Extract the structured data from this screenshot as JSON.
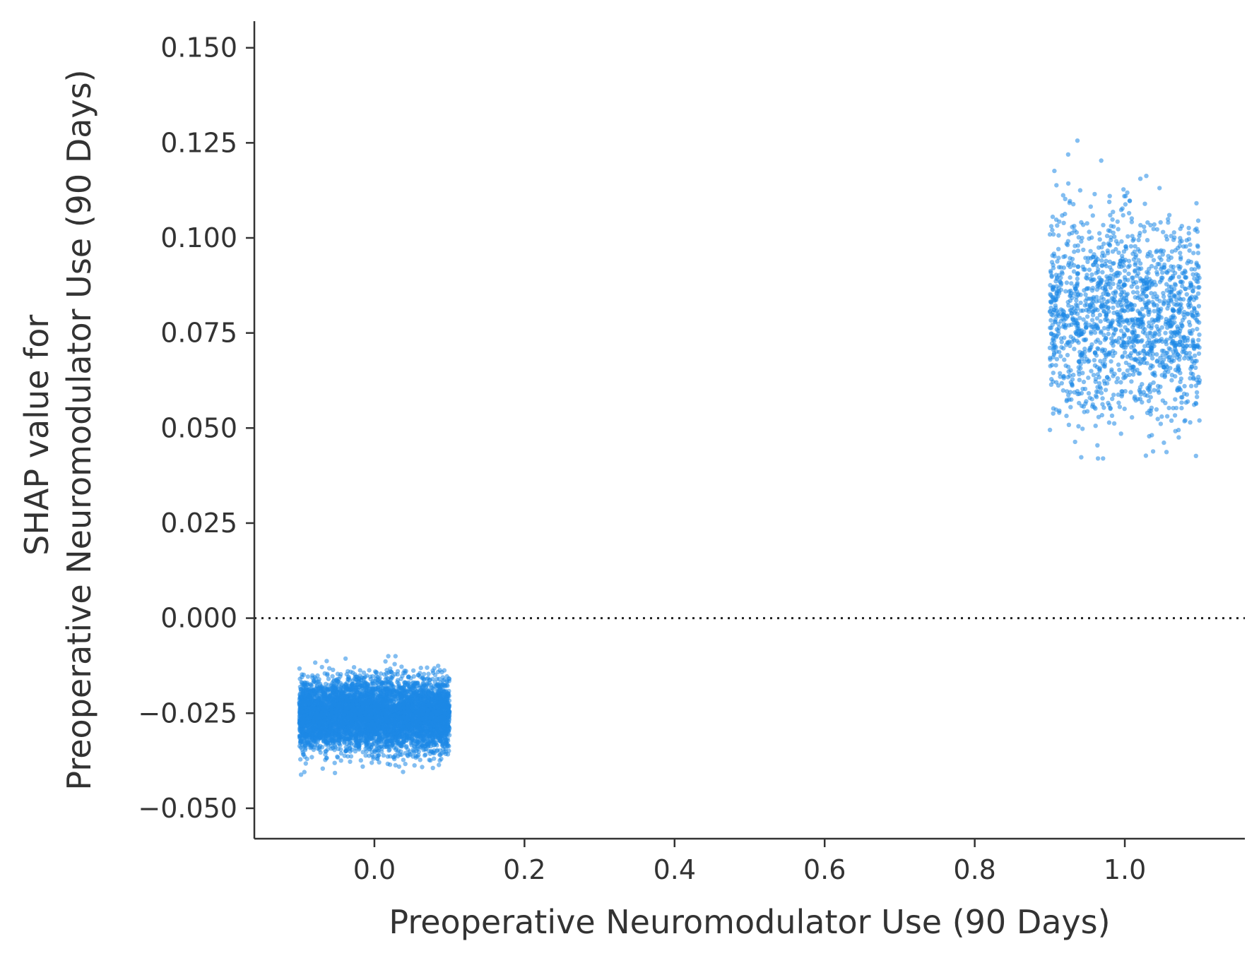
{
  "chart_data": {
    "type": "scatter",
    "title": "",
    "xlabel": "Preoperative Neuromodulator Use (90 Days)",
    "ylabel_lines": [
      "SHAP value for",
      "Preoperative Neuromodulator Use (90 Days)"
    ],
    "xlim": [
      -0.16,
      1.16
    ],
    "ylim": [
      -0.058,
      0.157
    ],
    "x_ticks": [
      0.0,
      0.2,
      0.4,
      0.6,
      0.8,
      1.0
    ],
    "x_tick_labels": [
      "0.0",
      "0.2",
      "0.4",
      "0.6",
      "0.8",
      "1.0"
    ],
    "y_ticks": [
      -0.05,
      -0.025,
      0.0,
      0.025,
      0.05,
      0.075,
      0.1,
      0.125,
      0.15
    ],
    "y_tick_labels": [
      "−0.050",
      "−0.025",
      "0.000",
      "0.025",
      "0.050",
      "0.075",
      "0.100",
      "0.125",
      "0.150"
    ],
    "reference_line": {
      "y": 0.0,
      "style": "dotted"
    },
    "grid": false,
    "point_color": "#1e88e5",
    "series": [
      {
        "x": 0.0,
        "x_jitter": [
          -0.1,
          0.1
        ],
        "y_center": -0.0255,
        "y_spread": 0.0045,
        "y_range": [
          -0.048,
          -0.01
        ],
        "approx_count": 6000
      },
      {
        "x": 1.0,
        "x_jitter": [
          -0.1,
          0.1
        ],
        "y_center": 0.079,
        "y_spread": 0.013,
        "y_range": [
          0.042,
          0.147
        ],
        "approx_count": 1600
      }
    ]
  }
}
